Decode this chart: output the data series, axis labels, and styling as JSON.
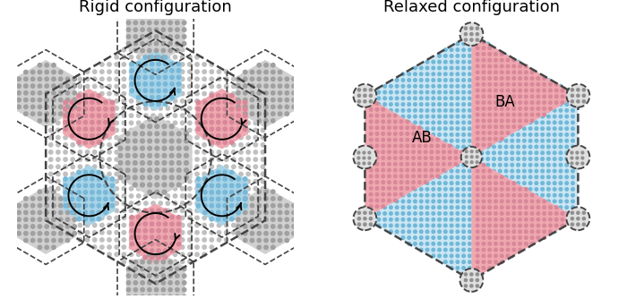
{
  "title_left": "Rigid configuration",
  "title_right": "Relaxed configuration",
  "title_fontsize": 13,
  "color_blue": "#a8d4e8",
  "color_pink": "#f0a8b0",
  "color_gray_hex": "#c8c8c8",
  "color_dot_blue": "#78b8d8",
  "color_dot_pink": "#d88898",
  "color_dot_gray": "#989898",
  "color_bg_dots": "#b8b8b8",
  "bg_color": "#ffffff"
}
